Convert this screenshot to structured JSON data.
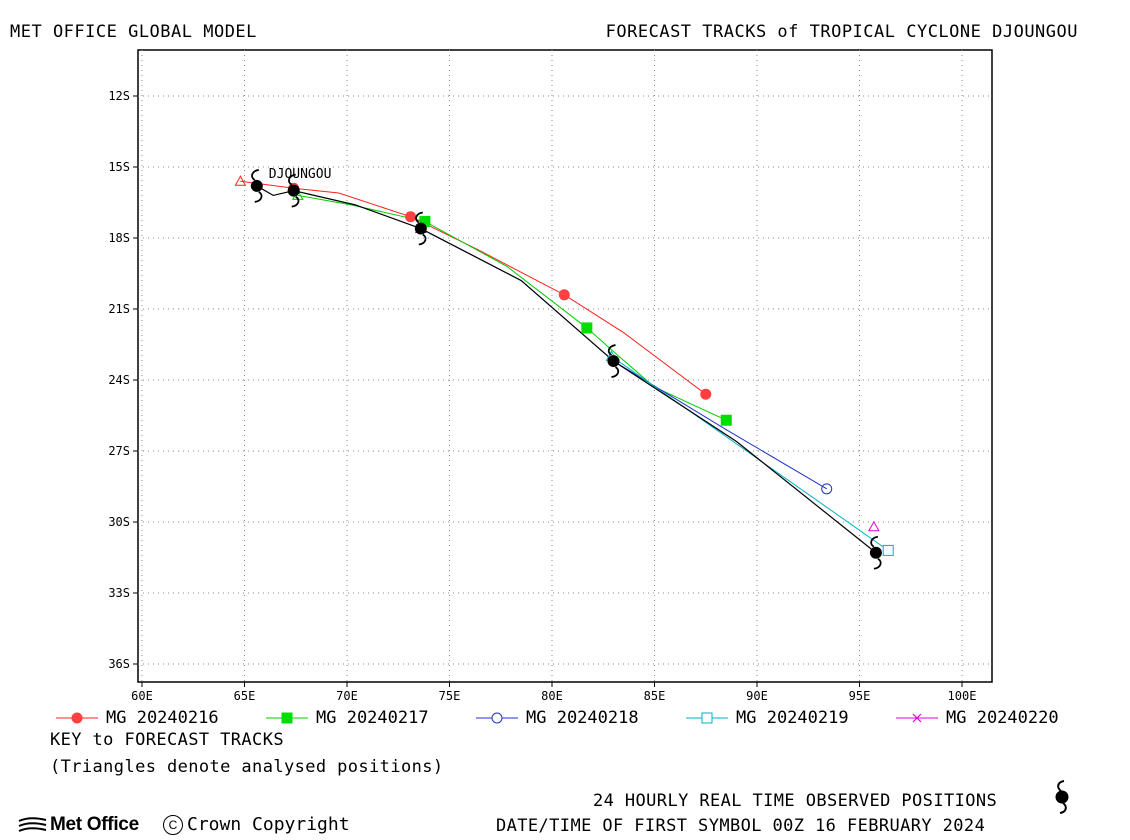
{
  "header": {
    "left_title": "MET OFFICE GLOBAL MODEL",
    "right_title": "FORECAST TRACKS of TROPICAL CYCLONE DJOUNGOU"
  },
  "chart_data": {
    "type": "line",
    "title": "FORECAST TRACKS of TROPICAL CYCLONE DJOUNGOU",
    "xlabel": "",
    "ylabel": "",
    "xlim": [
      60,
      101.5
    ],
    "ylim": [
      10,
      37
    ],
    "grid": true,
    "x_ticks": [
      60,
      65,
      70,
      75,
      80,
      85,
      90,
      95,
      100
    ],
    "x_tick_labels": [
      "60E",
      "65E",
      "70E",
      "75E",
      "80E",
      "85E",
      "90E",
      "95E",
      "100E"
    ],
    "y_ticks": [
      12,
      15,
      18,
      21,
      24,
      27,
      30,
      33,
      36
    ],
    "y_tick_labels": [
      "12S",
      "15S",
      "18S",
      "21S",
      "24S",
      "27S",
      "30S",
      "33S",
      "36S"
    ],
    "storm_label": "DJOUNGOU",
    "series": [
      {
        "name": "MG 20240216",
        "color": "#ff2020",
        "marker": "filled-circle",
        "points": [
          [
            64.8,
            15.6
          ],
          [
            67.4,
            15.9
          ],
          [
            69.6,
            16.1
          ],
          [
            73.1,
            17.1
          ],
          [
            76.4,
            18.5
          ],
          [
            80.6,
            20.4
          ],
          [
            83.5,
            22.0
          ],
          [
            87.5,
            24.6
          ]
        ],
        "markers_at": [
          1,
          3,
          5,
          7
        ],
        "analysed": [
          64.8,
          15.6
        ]
      },
      {
        "name": "MG 20240217",
        "color": "#00cc00",
        "marker": "filled-square",
        "points": [
          [
            67.6,
            16.2
          ],
          [
            70.2,
            16.6
          ],
          [
            73.8,
            17.3
          ],
          [
            77.8,
            19.2
          ],
          [
            81.7,
            21.8
          ],
          [
            83.4,
            23.1
          ],
          [
            85.0,
            24.3
          ],
          [
            88.5,
            25.7
          ]
        ],
        "markers_at": [
          2,
          4,
          7
        ],
        "analysed": [
          67.6,
          16.2
        ]
      },
      {
        "name": "MG 20240218",
        "color": "#2233cc",
        "marker": "open-circle",
        "points": [
          [
            73.6,
            17.6
          ],
          [
            78.5,
            19.8
          ],
          [
            83.0,
            23.2
          ],
          [
            88.5,
            26.1
          ],
          [
            93.4,
            28.6
          ]
        ],
        "markers_at": [
          2,
          4
        ],
        "analysed": [
          73.6,
          17.6
        ]
      },
      {
        "name": "MG 20240219",
        "color": "#00b0c8",
        "marker": "open-square",
        "points": [
          [
            82.9,
            23.0
          ],
          [
            89.0,
            26.7
          ],
          [
            96.4,
            31.2
          ]
        ],
        "markers_at": [
          2
        ],
        "analysed": [
          82.9,
          23.0
        ]
      },
      {
        "name": "MG 20240220",
        "color": "#dd00dd",
        "marker": "cross",
        "points": [
          [
            95.7,
            30.2
          ]
        ],
        "markers_at": [],
        "analysed": [
          95.7,
          30.2
        ]
      }
    ],
    "observed_track": {
      "color": "#000000",
      "points": [
        [
          65.6,
          15.8
        ],
        [
          66.4,
          16.2
        ],
        [
          67.4,
          16.0
        ],
        [
          70.4,
          16.6
        ],
        [
          73.6,
          17.6
        ],
        [
          78.5,
          19.8
        ],
        [
          83.0,
          23.2
        ],
        [
          89.0,
          26.6
        ],
        [
          95.8,
          31.3
        ]
      ],
      "symbol_at": [
        0,
        2,
        4,
        6,
        8
      ]
    }
  },
  "legend": {
    "entries": [
      "MG 20240216",
      "MG 20240217",
      "MG 20240218",
      "MG 20240219",
      "MG 20240220"
    ]
  },
  "footer": {
    "key_title": "KEY to FORECAST TRACKS",
    "key_note": "(Triangles denote analysed positions)",
    "observed_label": "24 HOURLY REAL TIME OBSERVED POSITIONS",
    "date_line": "DATE/TIME OF FIRST SYMBOL 00Z 16 FEBRUARY 2024",
    "logo_text": "Met Office",
    "copyright": "Crown Copyright"
  }
}
